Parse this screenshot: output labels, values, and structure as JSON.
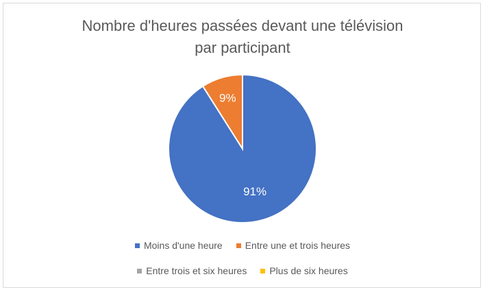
{
  "chart_data": {
    "type": "pie",
    "title": "Nombre d'heures passées devant une télévision par participant",
    "title_lines": [
      "Nombre d'heures passées devant une télévision",
      "par participant"
    ],
    "categories": [
      "Moins d'une heure",
      "Entre une et trois heures",
      "Entre trois et six heures",
      "Plus de six heures"
    ],
    "values": [
      91,
      9,
      0,
      0
    ],
    "data_labels": [
      "91%",
      "9%",
      "",
      ""
    ],
    "colors": [
      "#4472c4",
      "#ed7d31",
      "#a5a5a5",
      "#ffc000"
    ],
    "legend_position": "bottom"
  }
}
